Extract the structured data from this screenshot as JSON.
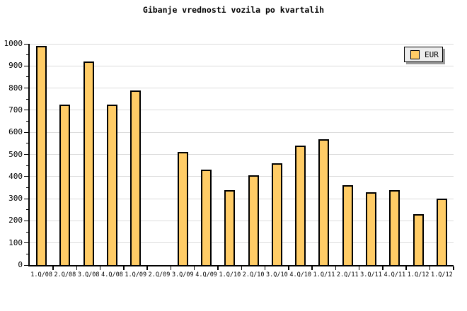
{
  "title": "Gibanje vrednosti vozila po kvartalih",
  "legend": {
    "label": "EUR"
  },
  "colors": {
    "bar_fill": "#FFCC66",
    "bar_border": "#000000",
    "gridline": "#DCDCDC",
    "axis": "#000000",
    "legend_background": "#EDEDED",
    "legend_shadow": "#999999",
    "background": "#FFFFFF"
  },
  "chart_data": {
    "type": "bar",
    "title": "Gibanje vrednosti vozila po kvartalih",
    "categories": [
      "1.Q/08",
      "2.Q/08",
      "3.Q/08",
      "4.Q/08",
      "1.Q/09",
      "2.Q/09",
      "3.Q/09",
      "4.Q/09",
      "1.Q/10",
      "2.Q/10",
      "3.Q/10",
      "4.Q/10",
      "1.Q/11",
      "2.Q/11",
      "3.Q/11",
      "4.Q/11",
      "1.Q/12",
      "1.Q/12"
    ],
    "series": [
      {
        "name": "EUR",
        "values": [
          990,
          725,
          920,
          725,
          790,
          null,
          510,
          430,
          340,
          405,
          460,
          540,
          570,
          360,
          330,
          340,
          230,
          300
        ]
      }
    ],
    "missing_categories": [
      "2.Q/09"
    ],
    "xlabel": "",
    "ylabel": "",
    "ylim": [
      0,
      1000
    ],
    "ytick_step": 100,
    "yminor_step": 50,
    "yticks": [
      0,
      100,
      200,
      300,
      400,
      500,
      600,
      700,
      800,
      900,
      1000
    ],
    "grid": true,
    "legend_position": "top-right"
  }
}
